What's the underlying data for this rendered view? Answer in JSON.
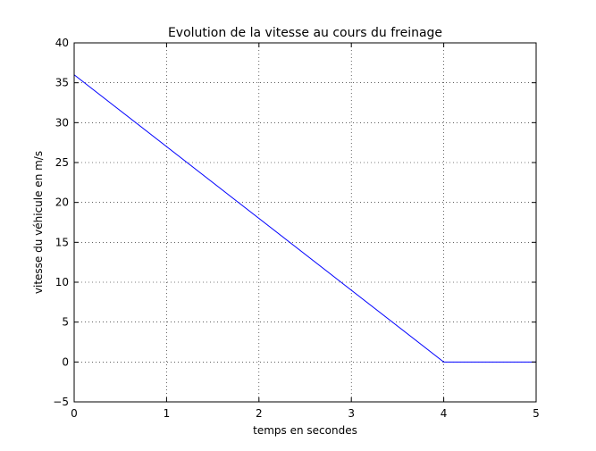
{
  "chart_data": {
    "type": "line",
    "title": "Evolution de la vitesse au cours du freinage",
    "xlabel": "temps en secondes",
    "ylabel": "vitesse du véhicule en m/s",
    "xlim": [
      0,
      5
    ],
    "ylim": [
      -5,
      40
    ],
    "xticks": [
      0,
      1,
      2,
      3,
      4,
      5
    ],
    "yticks": [
      -5,
      0,
      5,
      10,
      15,
      20,
      25,
      30,
      35,
      40
    ],
    "xtick_labels": [
      "0",
      "1",
      "2",
      "3",
      "4",
      "5"
    ],
    "ytick_labels": [
      "−5",
      "0",
      "5",
      "10",
      "15",
      "20",
      "25",
      "30",
      "35",
      "40"
    ],
    "grid": true,
    "legend": false,
    "series": [
      {
        "color": "#0000ff",
        "x": [
          0,
          4,
          5
        ],
        "y": [
          36,
          0,
          0
        ]
      }
    ]
  }
}
